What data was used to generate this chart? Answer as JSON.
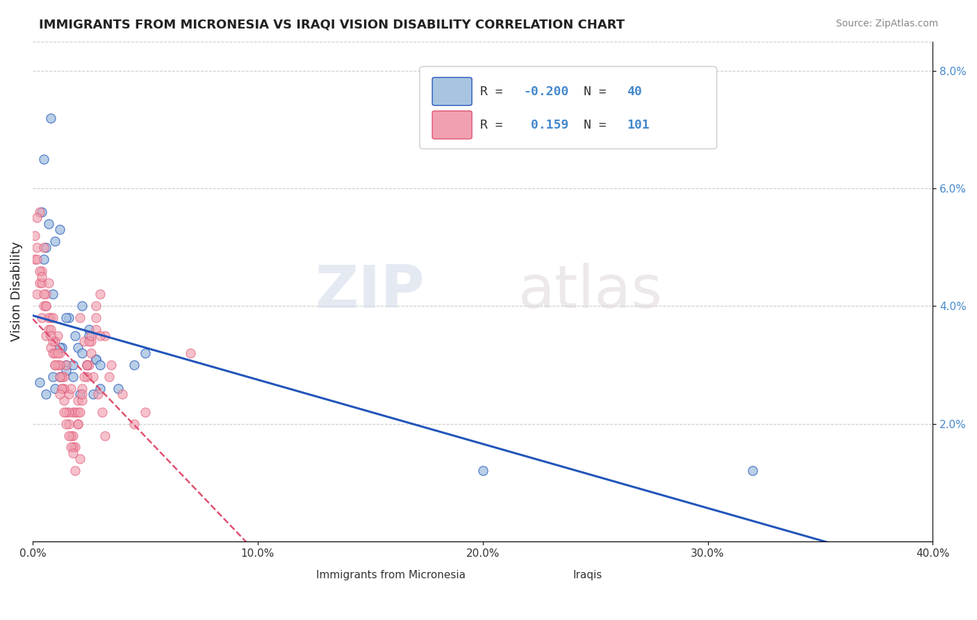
{
  "title": "IMMIGRANTS FROM MICRONESIA VS IRAQI VISION DISABILITY CORRELATION CHART",
  "source": "Source: ZipAtlas.com",
  "ylabel": "Vision Disability",
  "xlim": [
    0.0,
    0.4
  ],
  "ylim": [
    0.0,
    0.085
  ],
  "yticks": [
    0.02,
    0.04,
    0.06,
    0.08
  ],
  "ytick_labels": [
    "2.0%",
    "4.0%",
    "6.0%",
    "8.0%"
  ],
  "xticks": [
    0.0,
    0.1,
    0.2,
    0.3,
    0.4
  ],
  "xtick_labels": [
    "0.0%",
    "10.0%",
    "20.0%",
    "30.0%",
    "40.0%"
  ],
  "legend_r_blue": "-0.200",
  "legend_n_blue": "40",
  "legend_r_pink": "0.159",
  "legend_n_pink": "101",
  "blue_scatter_x": [
    0.005,
    0.008,
    0.01,
    0.012,
    0.015,
    0.018,
    0.02,
    0.022,
    0.025,
    0.028,
    0.005,
    0.007,
    0.01,
    0.013,
    0.016,
    0.019,
    0.022,
    0.025,
    0.028,
    0.03,
    0.004,
    0.006,
    0.009,
    0.012,
    0.015,
    0.018,
    0.021,
    0.024,
    0.027,
    0.03,
    0.003,
    0.006,
    0.009,
    0.012,
    0.015,
    0.038,
    0.2,
    0.32,
    0.045,
    0.05
  ],
  "blue_scatter_y": [
    0.065,
    0.072,
    0.051,
    0.053,
    0.03,
    0.028,
    0.033,
    0.032,
    0.036,
    0.031,
    0.048,
    0.054,
    0.026,
    0.033,
    0.038,
    0.035,
    0.04,
    0.035,
    0.031,
    0.03,
    0.056,
    0.05,
    0.042,
    0.028,
    0.029,
    0.03,
    0.025,
    0.03,
    0.025,
    0.026,
    0.027,
    0.025,
    0.028,
    0.033,
    0.038,
    0.026,
    0.012,
    0.012,
    0.03,
    0.032
  ],
  "pink_scatter_x": [
    0.002,
    0.004,
    0.006,
    0.008,
    0.01,
    0.012,
    0.014,
    0.016,
    0.018,
    0.02,
    0.001,
    0.003,
    0.005,
    0.007,
    0.009,
    0.011,
    0.013,
    0.015,
    0.017,
    0.019,
    0.021,
    0.023,
    0.025,
    0.027,
    0.029,
    0.031,
    0.002,
    0.004,
    0.006,
    0.008,
    0.01,
    0.012,
    0.014,
    0.016,
    0.018,
    0.02,
    0.022,
    0.024,
    0.026,
    0.028,
    0.003,
    0.005,
    0.007,
    0.009,
    0.011,
    0.013,
    0.015,
    0.017,
    0.019,
    0.021,
    0.001,
    0.002,
    0.004,
    0.006,
    0.008,
    0.01,
    0.012,
    0.014,
    0.016,
    0.018,
    0.02,
    0.022,
    0.024,
    0.026,
    0.028,
    0.03,
    0.032,
    0.034,
    0.05,
    0.07,
    0.003,
    0.005,
    0.007,
    0.009,
    0.011,
    0.013,
    0.015,
    0.017,
    0.019,
    0.021,
    0.023,
    0.025,
    0.03,
    0.035,
    0.04,
    0.045,
    0.002,
    0.004,
    0.006,
    0.008,
    0.01,
    0.012,
    0.014,
    0.016,
    0.018,
    0.02,
    0.022,
    0.024,
    0.026,
    0.028,
    0.032
  ],
  "pink_scatter_y": [
    0.042,
    0.038,
    0.035,
    0.033,
    0.03,
    0.032,
    0.028,
    0.025,
    0.022,
    0.024,
    0.048,
    0.044,
    0.04,
    0.036,
    0.032,
    0.035,
    0.028,
    0.03,
    0.026,
    0.022,
    0.038,
    0.034,
    0.03,
    0.028,
    0.025,
    0.022,
    0.05,
    0.046,
    0.042,
    0.038,
    0.034,
    0.03,
    0.026,
    0.022,
    0.018,
    0.02,
    0.024,
    0.028,
    0.032,
    0.036,
    0.046,
    0.042,
    0.038,
    0.034,
    0.03,
    0.026,
    0.022,
    0.018,
    0.016,
    0.014,
    0.052,
    0.048,
    0.044,
    0.04,
    0.036,
    0.032,
    0.028,
    0.024,
    0.02,
    0.016,
    0.022,
    0.026,
    0.03,
    0.034,
    0.038,
    0.042,
    0.035,
    0.028,
    0.022,
    0.032,
    0.056,
    0.05,
    0.044,
    0.038,
    0.032,
    0.026,
    0.02,
    0.016,
    0.012,
    0.022,
    0.028,
    0.034,
    0.035,
    0.03,
    0.025,
    0.02,
    0.055,
    0.045,
    0.04,
    0.035,
    0.03,
    0.025,
    0.022,
    0.018,
    0.015,
    0.02,
    0.025,
    0.03,
    0.035,
    0.04,
    0.018
  ],
  "blue_color": "#a8c4e0",
  "pink_color": "#f0a0b0",
  "blue_line_color": "#2255bb",
  "pink_line_color": "#e05070",
  "watermark_zip": "ZIP",
  "watermark_atlas": "atlas",
  "background_color": "#ffffff",
  "grid_color": "#cccccc",
  "legend_text_color": "#333333",
  "legend_num_color": "#4488cc",
  "title_color": "#222222",
  "source_color": "#888888",
  "ytick_color": "#4488cc",
  "xtick_color": "#333333"
}
